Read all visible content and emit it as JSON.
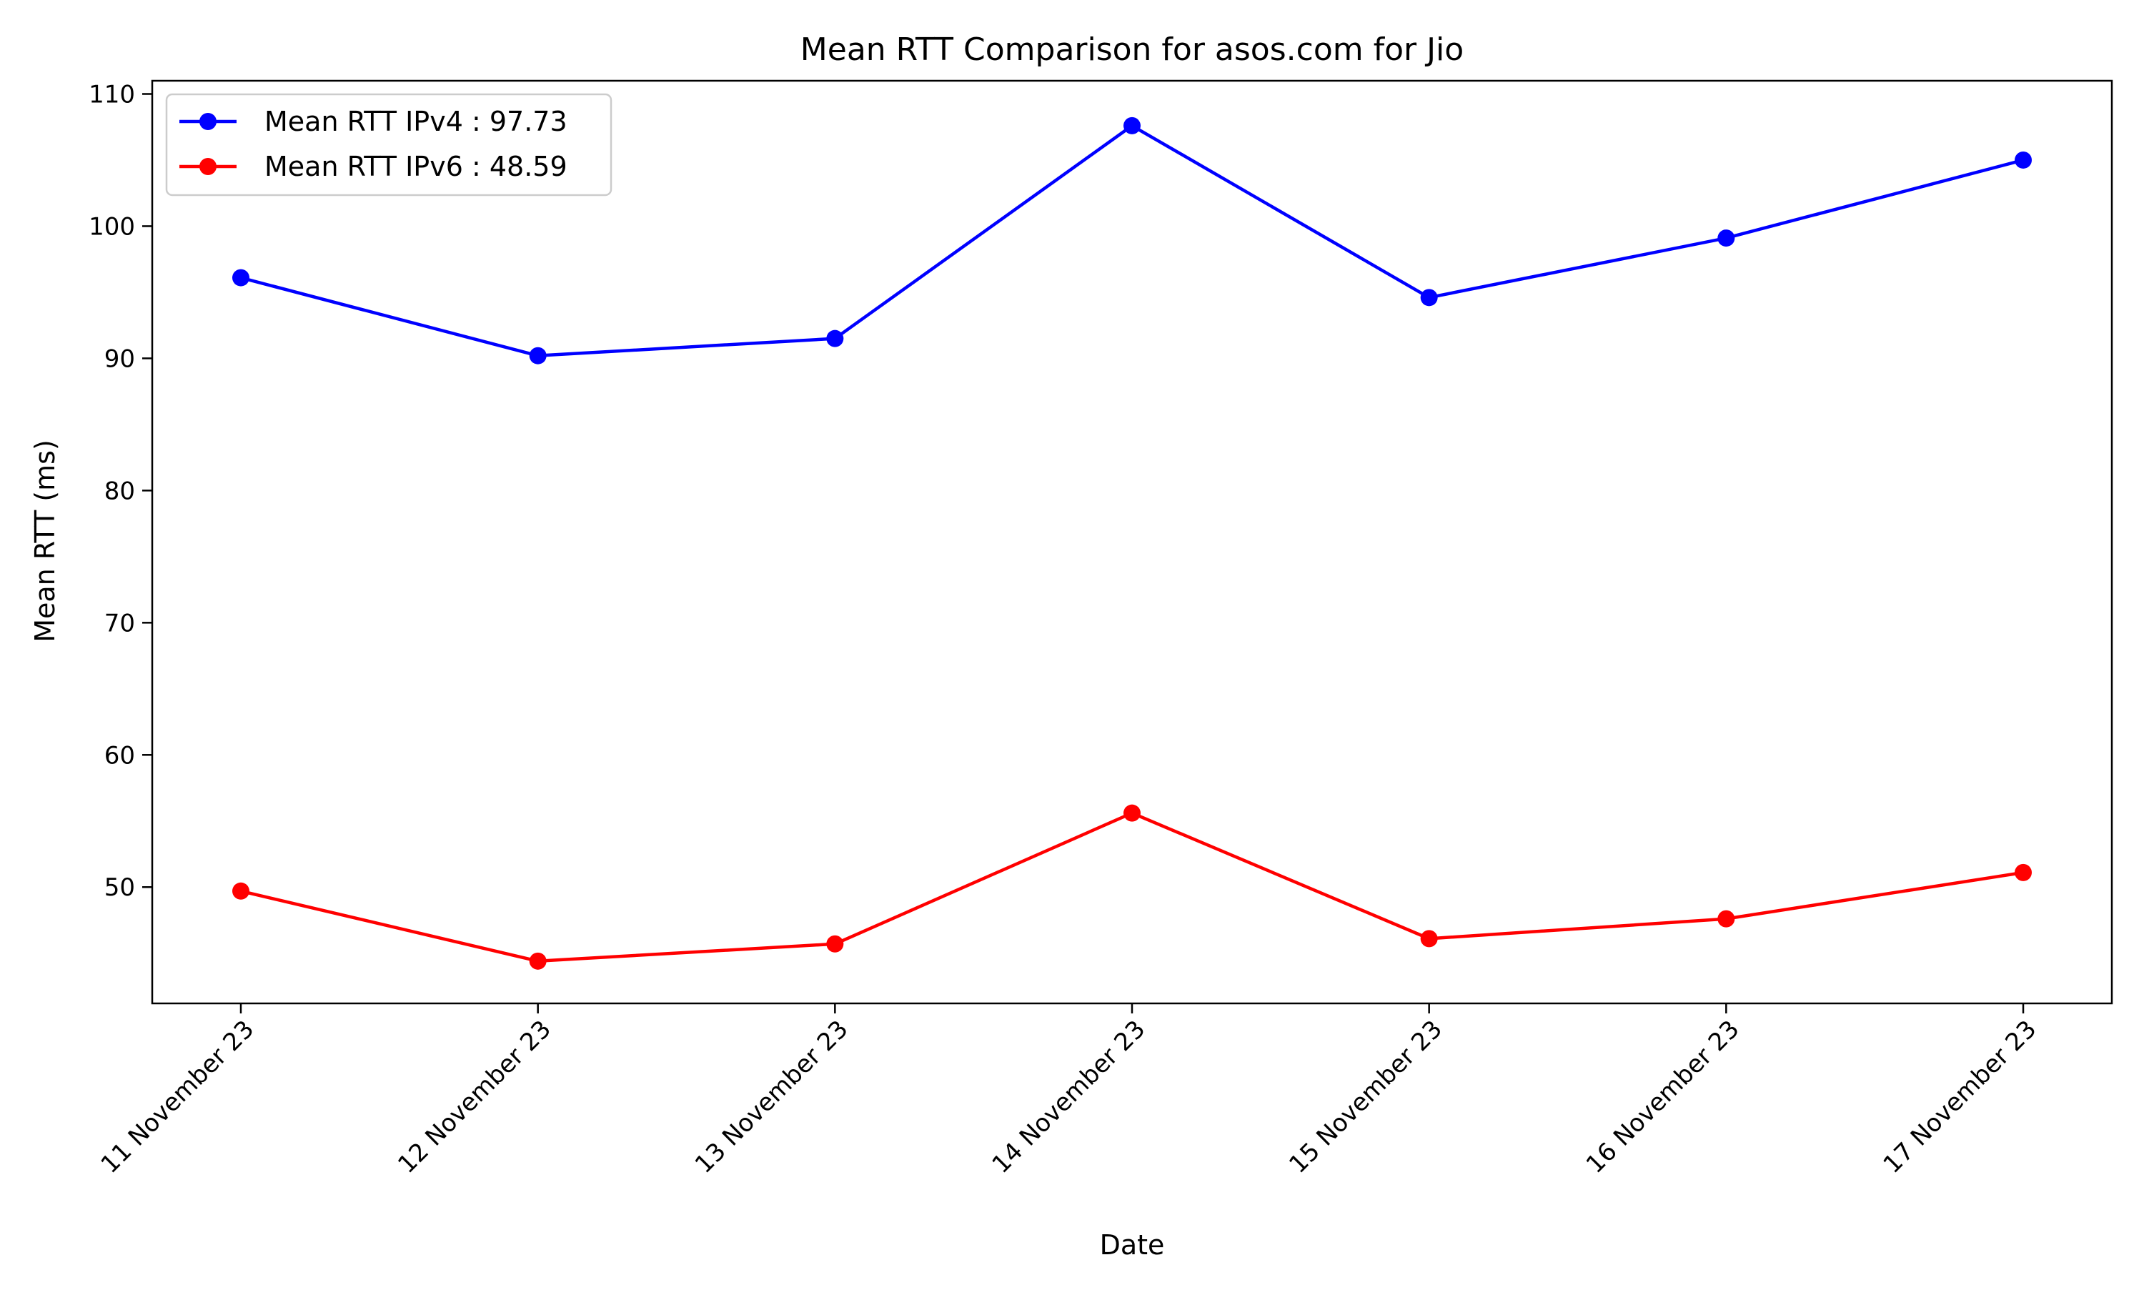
{
  "chart_data": {
    "type": "line",
    "title": "Mean RTT Comparison for asos.com for Jio",
    "xlabel": "Date",
    "ylabel": "Mean RTT (ms)",
    "categories": [
      "11 November 23",
      "12 November 23",
      "13 November 23",
      "14 November 23",
      "15 November 23",
      "16 November 23",
      "17 November 23"
    ],
    "yticks": [
      50,
      60,
      70,
      80,
      90,
      100,
      110
    ],
    "ylim": [
      41.2,
      111.0
    ],
    "grid": false,
    "legend_position": "top-left",
    "series": [
      {
        "name": "Mean RTT IPv4 : 97.73",
        "color": "#0000ff",
        "marker": "circle",
        "values": [
          96.1,
          90.2,
          91.5,
          107.6,
          94.6,
          99.1,
          105.0
        ]
      },
      {
        "name": "Mean RTT IPv6 : 48.59",
        "color": "#ff0000",
        "marker": "circle",
        "values": [
          49.7,
          44.4,
          45.7,
          55.6,
          46.1,
          47.6,
          51.1
        ]
      }
    ]
  }
}
